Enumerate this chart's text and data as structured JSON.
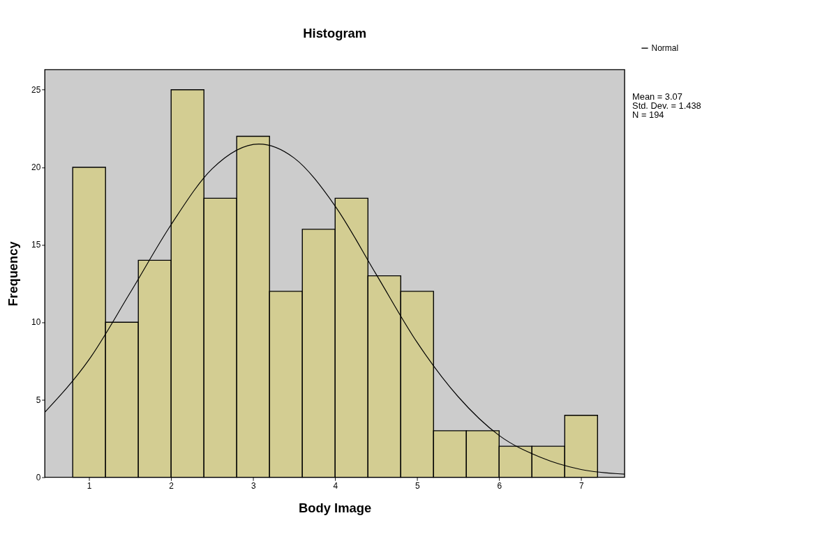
{
  "chart_data": {
    "type": "histogram",
    "title": "Histogram",
    "xlabel": "Body Image",
    "ylabel": "Frequency",
    "bins": [
      0.8,
      1.2,
      1.6,
      2.0,
      2.4,
      2.8,
      3.2,
      3.6,
      4.0,
      4.4,
      4.8,
      5.2,
      5.6,
      6.0,
      6.4,
      6.8,
      7.2
    ],
    "values": [
      20,
      10,
      14,
      25,
      18,
      22,
      12,
      16,
      18,
      13,
      12,
      3,
      3,
      2,
      2,
      4
    ],
    "color": "#d3cd92",
    "series": [
      {
        "type": "line",
        "name": "Normal",
        "color": "#000000",
        "x": [
          0.46,
          1.0,
          1.5,
          2.0,
          2.5,
          3.07,
          3.5,
          4.0,
          4.5,
          5.0,
          5.5,
          6.0,
          6.5,
          7.0,
          7.53
        ],
        "values": [
          4.2,
          7.6,
          11.9,
          16.3,
          19.9,
          21.5,
          20.6,
          17.5,
          13.1,
          8.7,
          5.2,
          2.7,
          1.3,
          0.5,
          0.2
        ]
      }
    ],
    "xlim": [
      0.46,
      7.53
    ],
    "xticks": [
      1,
      2,
      3,
      4,
      5,
      6,
      7
    ],
    "ylim": [
      0,
      26.3
    ],
    "yticks": [
      0,
      5,
      10,
      15,
      20,
      25
    ],
    "grid": false,
    "legend": "top right",
    "annotations": [
      "Mean = 3.07",
      "Std. Dev. = 1.438",
      "N = 194"
    ]
  }
}
